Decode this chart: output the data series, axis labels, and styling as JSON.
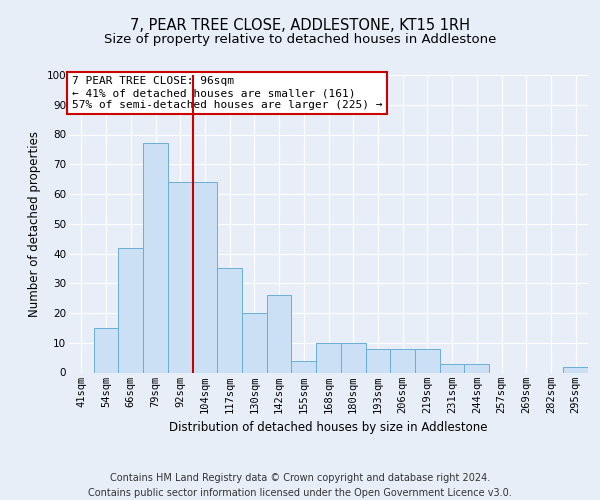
{
  "title": "7, PEAR TREE CLOSE, ADDLESTONE, KT15 1RH",
  "subtitle": "Size of property relative to detached houses in Addlestone",
  "xlabel": "Distribution of detached houses by size in Addlestone",
  "ylabel": "Number of detached properties",
  "categories": [
    "41sqm",
    "54sqm",
    "66sqm",
    "79sqm",
    "92sqm",
    "104sqm",
    "117sqm",
    "130sqm",
    "142sqm",
    "155sqm",
    "168sqm",
    "180sqm",
    "193sqm",
    "206sqm",
    "219sqm",
    "231sqm",
    "244sqm",
    "257sqm",
    "269sqm",
    "282sqm",
    "295sqm"
  ],
  "values": [
    0,
    15,
    42,
    77,
    64,
    64,
    35,
    20,
    26,
    4,
    10,
    10,
    8,
    8,
    8,
    3,
    3,
    0,
    0,
    0,
    2
  ],
  "bar_color": "#cce0f5",
  "bar_edge_color": "#6aaed6",
  "bg_color": "#e8eef8",
  "plot_bg_color": "#e8eef8",
  "grid_color": "#ffffff",
  "vline_x_index": 4.5,
  "vline_color": "#cc0000",
  "annotation_text": "7 PEAR TREE CLOSE: 96sqm\n← 41% of detached houses are smaller (161)\n57% of semi-detached houses are larger (225) →",
  "annotation_box_color": "#ffffff",
  "annotation_box_edge": "#cc0000",
  "ylim": [
    0,
    100
  ],
  "yticks": [
    0,
    10,
    20,
    30,
    40,
    50,
    60,
    70,
    80,
    90,
    100
  ],
  "footer": "Contains HM Land Registry data © Crown copyright and database right 2024.\nContains public sector information licensed under the Open Government Licence v3.0.",
  "title_fontsize": 10.5,
  "subtitle_fontsize": 9.5,
  "axis_label_fontsize": 8.5,
  "tick_fontsize": 7.5,
  "annotation_fontsize": 8,
  "footer_fontsize": 7
}
